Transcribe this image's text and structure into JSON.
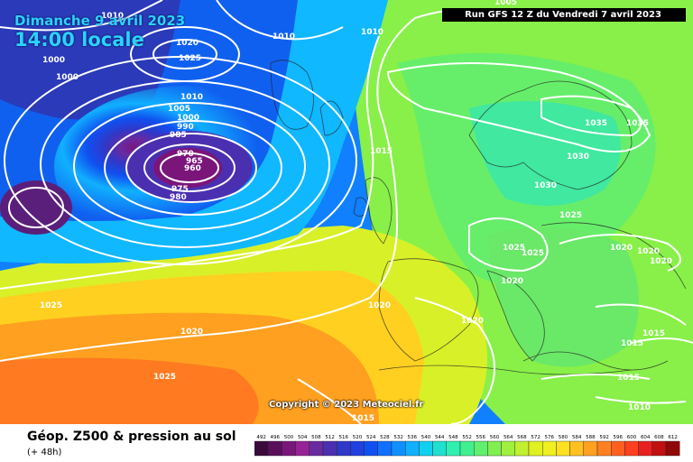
{
  "map": {
    "date": "Dimanche 9 avril 2023",
    "time": "14:00 locale",
    "run": "Run GFS 12 Z du Vendredi 7 avril 2023",
    "copyright": "Copyright © 2023 Meteociel.fr",
    "product": "Géop. Z500 & pression au sol",
    "lead": "(+ 48h)"
  },
  "isobars": [
    {
      "label": "1010",
      "role": "isobar-label"
    },
    {
      "label": "1010"
    },
    {
      "label": "1010"
    },
    {
      "label": "1020"
    },
    {
      "label": "1025"
    },
    {
      "label": "1000"
    },
    {
      "label": "1000"
    },
    {
      "label": "1010"
    },
    {
      "label": "1005"
    },
    {
      "label": "1000"
    },
    {
      "label": "990"
    },
    {
      "label": "985"
    },
    {
      "label": "970"
    },
    {
      "label": "965"
    },
    {
      "label": "960"
    },
    {
      "label": "975"
    },
    {
      "label": "980"
    },
    {
      "label": "1015"
    },
    {
      "label": "1035"
    },
    {
      "label": "1035"
    },
    {
      "label": "1030"
    },
    {
      "label": "1030"
    },
    {
      "label": "1025"
    },
    {
      "label": "1025"
    },
    {
      "label": "1025"
    },
    {
      "label": "1020"
    },
    {
      "label": "1020"
    },
    {
      "label": "1020"
    },
    {
      "label": "1020"
    },
    {
      "label": "1020"
    },
    {
      "label": "1020"
    },
    {
      "label": "1025"
    },
    {
      "label": "1020"
    },
    {
      "label": "1025"
    },
    {
      "label": "1015"
    },
    {
      "label": "1015"
    },
    {
      "label": "1015"
    },
    {
      "label": "1010"
    },
    {
      "label": "1015"
    },
    {
      "label": "1005"
    }
  ],
  "scale": {
    "values": [
      "492",
      "496",
      "500",
      "504",
      "508",
      "512",
      "516",
      "520",
      "524",
      "528",
      "532",
      "536",
      "540",
      "544",
      "548",
      "552",
      "556",
      "560",
      "564",
      "568",
      "572",
      "576",
      "580",
      "584",
      "588",
      "592",
      "596",
      "600",
      "604",
      "608",
      "612"
    ],
    "colors": [
      "#3a0a3a",
      "#5a0f5a",
      "#7a157a",
      "#962396",
      "#6a2aa0",
      "#4a30b0",
      "#3038c8",
      "#2040e0",
      "#1050f0",
      "#1070ff",
      "#1090ff",
      "#10b0ff",
      "#10d0f0",
      "#20e0d0",
      "#30f0b0",
      "#40f090",
      "#60f070",
      "#80f050",
      "#a0f040",
      "#c0f030",
      "#e0f020",
      "#f0f020",
      "#ffe020",
      "#ffc020",
      "#ffa020",
      "#ff8020",
      "#ff6020",
      "#ff4020",
      "#e82020",
      "#c01010",
      "#900808"
    ]
  }
}
